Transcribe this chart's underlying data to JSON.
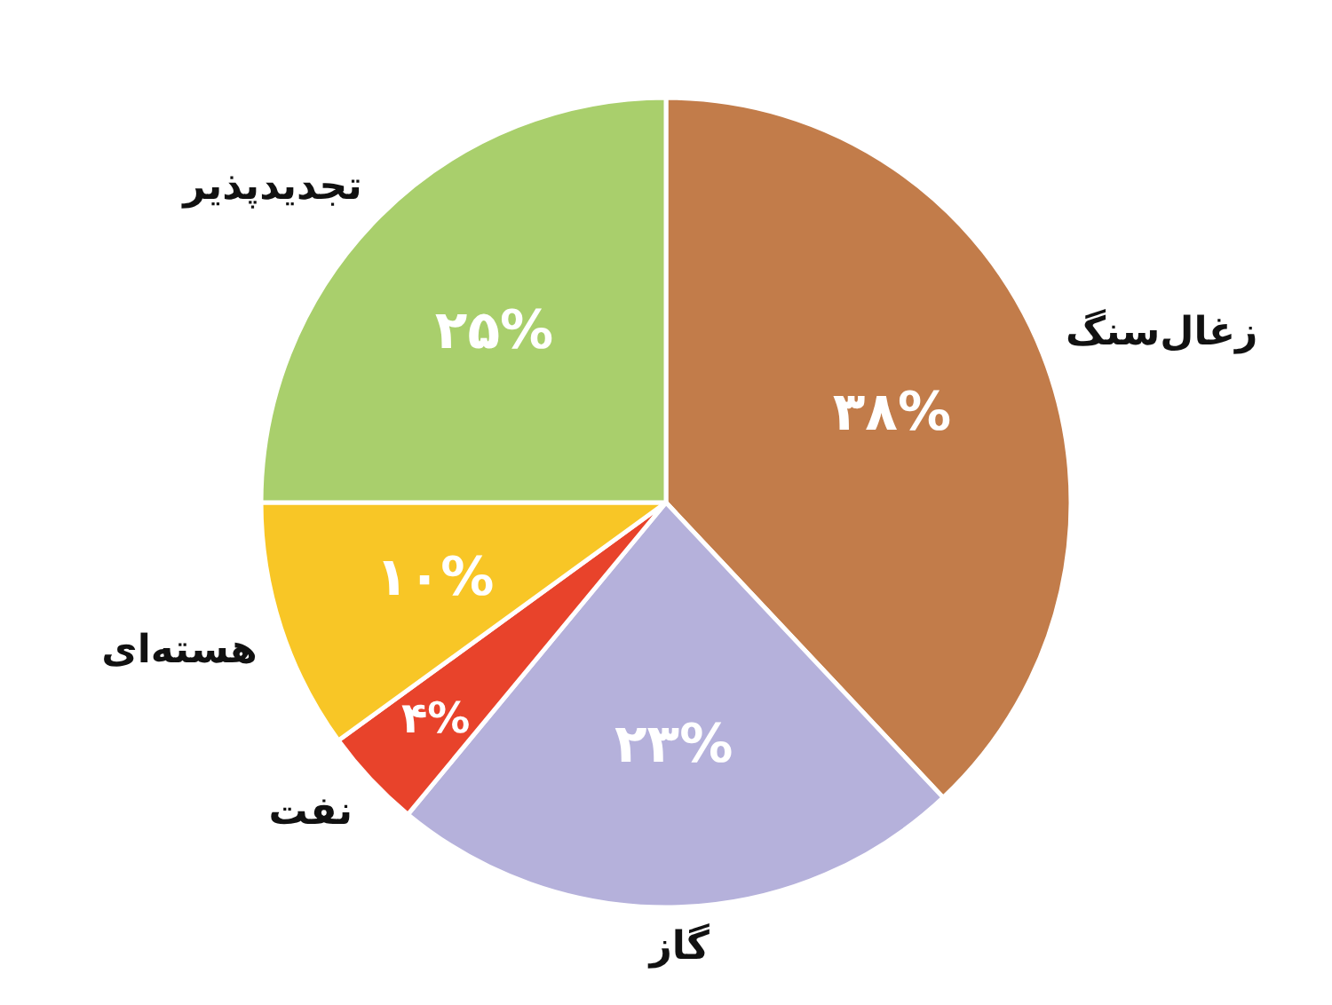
{
  "chart_data": {
    "type": "pie",
    "categories": [
      "زغال‌سنگ",
      "گاز",
      "نفت",
      "هسته‌ای",
      "تجدیدپذیر"
    ],
    "values": [
      38,
      23,
      4,
      10,
      25
    ],
    "colors": [
      "#c27c4a",
      "#b5b1db",
      "#e8432b",
      "#f8c626",
      "#a9cf6c"
    ],
    "value_labels": [
      "۳۸%",
      "۲۳%",
      "۴%",
      "۱۰%",
      "۲۵%"
    ]
  }
}
